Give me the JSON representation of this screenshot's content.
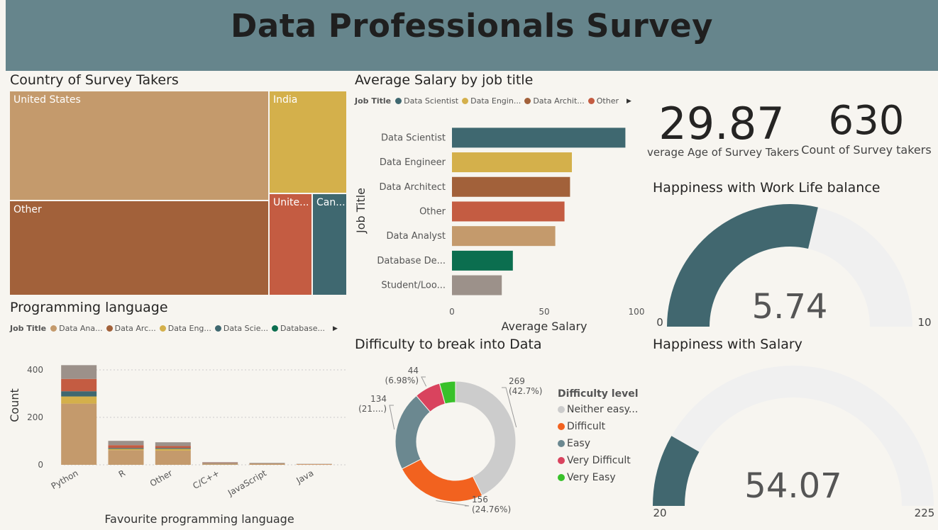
{
  "header": {
    "title": "Data Professionals Survey"
  },
  "colors": {
    "data_analyst": "#c49a6c",
    "data_architect": "#a2613a",
    "data_engineer": "#d4b04b",
    "data_scientist": "#3f6870",
    "database": "#0b6e4f",
    "other": "#c45c42",
    "student": "#9c918a",
    "gauge_fill": "#41676f",
    "gauge_bg": "#f0f0f0"
  },
  "country": {
    "title": "Country of Survey Takers",
    "cells": [
      {
        "label": "United States",
        "color": "#c49a6c"
      },
      {
        "label": "Other",
        "color": "#a2613a"
      },
      {
        "label": "India",
        "color": "#d4b04b"
      },
      {
        "label": "Unite...",
        "color": "#c45c42"
      },
      {
        "label": "Can...",
        "color": "#3f6870"
      }
    ]
  },
  "chart_data": [
    {
      "type": "bar",
      "orientation": "horizontal",
      "title": "Average Salary by job title",
      "legend_title": "Job Title",
      "legend": [
        {
          "name": "Data Scientist",
          "color": "#3f6870"
        },
        {
          "name": "Data Engin...",
          "color": "#d4b04b"
        },
        {
          "name": "Data Archit...",
          "color": "#a2613a"
        },
        {
          "name": "Other",
          "color": "#c45c42"
        }
      ],
      "categories": [
        "Data Scientist",
        "Data Engineer",
        "Data Architect",
        "Other",
        "Data Analyst",
        "Database De...",
        "Student/Loo..."
      ],
      "values": [
        94,
        65,
        64,
        61,
        56,
        33,
        27
      ],
      "colors": [
        "#3f6870",
        "#d4b04b",
        "#a2613a",
        "#c45c42",
        "#c49a6c",
        "#0b6e4f",
        "#9c918a"
      ],
      "xlabel": "Average Salary",
      "ylabel": "Job Title",
      "xlim": [
        0,
        100
      ],
      "xticks": [
        "0",
        "50",
        "100"
      ]
    },
    {
      "type": "bar",
      "stacked": true,
      "title": "Programming language",
      "legend_title": "Job Title",
      "legend": [
        {
          "name": "Data Ana...",
          "color": "#c49a6c"
        },
        {
          "name": "Data Arc...",
          "color": "#a2613a"
        },
        {
          "name": "Data Eng...",
          "color": "#d4b04b"
        },
        {
          "name": "Data Scie...",
          "color": "#3f6870"
        },
        {
          "name": "Database...",
          "color": "#0b6e4f"
        }
      ],
      "categories": [
        "Python",
        "R",
        "Other",
        "C/C++",
        "JavaScript",
        "Java"
      ],
      "series": [
        {
          "name": "Data Analyst",
          "color": "#c49a6c",
          "values": [
            258,
            62,
            60,
            4,
            3,
            1
          ]
        },
        {
          "name": "Data Engineer",
          "color": "#d4b04b",
          "values": [
            30,
            5,
            7,
            1,
            1,
            1
          ]
        },
        {
          "name": "Data Scientist",
          "color": "#3f6870",
          "values": [
            22,
            4,
            4,
            1,
            1,
            0
          ]
        },
        {
          "name": "Other",
          "color": "#c45c42",
          "values": [
            52,
            12,
            8,
            2,
            1,
            1
          ]
        },
        {
          "name": "Student",
          "color": "#9c918a",
          "values": [
            58,
            18,
            16,
            3,
            2,
            1
          ]
        }
      ],
      "xlabel": "Favourite programming language",
      "ylabel": "Count",
      "ylim": [
        0,
        430
      ],
      "yticks": [
        "0",
        "200",
        "400"
      ]
    },
    {
      "type": "pie",
      "donut": true,
      "title": "Difficulty to break into Data",
      "legend_title": "Difficulty level",
      "slices": [
        {
          "name": "Neither easy...",
          "value": 269,
          "label": "269",
          "pct": "(42.7%)",
          "color": "#cccccc"
        },
        {
          "name": "Difficult",
          "value": 156,
          "label": "156",
          "pct": "(24.76%)",
          "color": "#f2621f"
        },
        {
          "name": "Easy",
          "value": 134,
          "label": "134",
          "pct": "(21....)",
          "color": "#6b8890"
        },
        {
          "name": "Very Difficult",
          "value": 44,
          "label": "44",
          "pct": "(6.98%)",
          "color": "#d9435e"
        },
        {
          "name": "Very Easy",
          "value": 27,
          "label": "",
          "pct": "",
          "color": "#38c12a"
        }
      ]
    },
    {
      "type": "gauge",
      "title": "Happiness with Work Life balance",
      "value": 5.74,
      "value_label": "5.74",
      "min": 0,
      "max": 10,
      "min_label": "0",
      "max_label": "10"
    },
    {
      "type": "gauge",
      "title": "Happiness with Salary",
      "value": 54.07,
      "value_label": "54.07",
      "min": 20,
      "max": 225,
      "min_label": "20",
      "max_label": "225"
    }
  ],
  "kpis": [
    {
      "value": "29.87",
      "label": "verage Age of Survey Takers"
    },
    {
      "value": "630",
      "label": "Count of Survey takers"
    }
  ]
}
